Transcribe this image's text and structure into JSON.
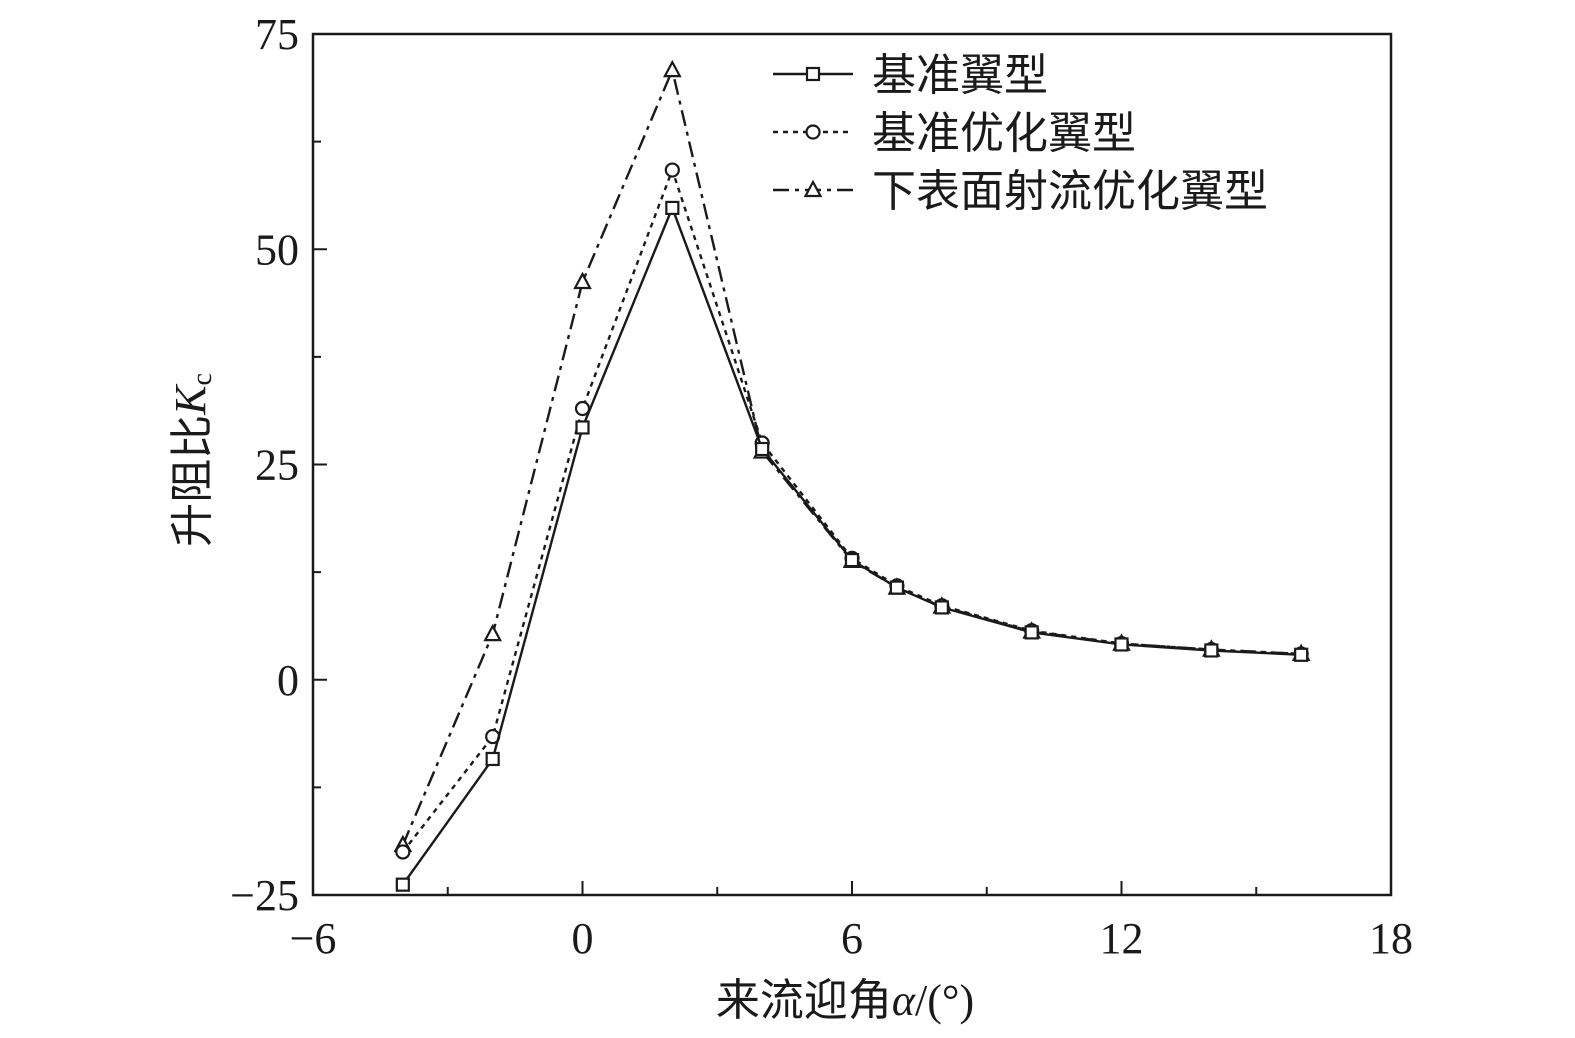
{
  "chart_data": {
    "type": "line",
    "title": "",
    "xlabel": {
      "main": "来流迎角",
      "symbol": "α",
      "unit": "/(°)"
    },
    "ylabel": {
      "main": "升阻比",
      "symbol": "K",
      "subscript": "c"
    },
    "xlim": [
      -6,
      18
    ],
    "ylim": [
      -25,
      75
    ],
    "x_ticks": [
      -6,
      0,
      6,
      12,
      18
    ],
    "x_tick_labels": [
      "−6",
      "0",
      "6",
      "12",
      "18"
    ],
    "x_minor_ticks": [
      -3,
      3,
      9,
      15
    ],
    "y_ticks": [
      -25,
      0,
      25,
      50,
      75
    ],
    "y_tick_labels": [
      "−25",
      "0",
      "25",
      "50",
      "75"
    ],
    "y_minor_ticks": [
      -12.5,
      12.5,
      37.5,
      62.5
    ],
    "grid": false,
    "legend_position": "top-right",
    "series": [
      {
        "name": "基准翼型",
        "line_style": "solid",
        "marker": "square",
        "x": [
          -4,
          -2,
          0,
          2,
          4,
          6,
          7,
          8,
          10,
          12,
          14,
          16
        ],
        "values": [
          -23.8,
          -9.2,
          29.3,
          54.8,
          26.8,
          13.9,
          10.7,
          8.4,
          5.5,
          4.1,
          3.4,
          2.9
        ]
      },
      {
        "name": "基准优化翼型",
        "line_style": "dotted",
        "marker": "circle",
        "x": [
          -4,
          -2,
          0,
          2,
          4,
          6,
          7,
          8,
          10,
          12,
          14,
          16
        ],
        "values": [
          -20.0,
          -6.6,
          31.5,
          59.2,
          27.5,
          14.1,
          10.9,
          8.6,
          5.7,
          4.2,
          3.5,
          3.0
        ]
      },
      {
        "name": "下表面射流优化翼型",
        "line_style": "dashdot",
        "marker": "triangle",
        "x": [
          -4,
          -2,
          0,
          2,
          4,
          6,
          7,
          8,
          10,
          12,
          14,
          16
        ],
        "values": [
          -19.2,
          5.3,
          46.2,
          70.8,
          26.5,
          13.8,
          10.7,
          8.5,
          5.6,
          4.2,
          3.5,
          3.0
        ]
      }
    ],
    "colors": {
      "line": "#1a1a1a",
      "background": "#ffffff"
    }
  }
}
